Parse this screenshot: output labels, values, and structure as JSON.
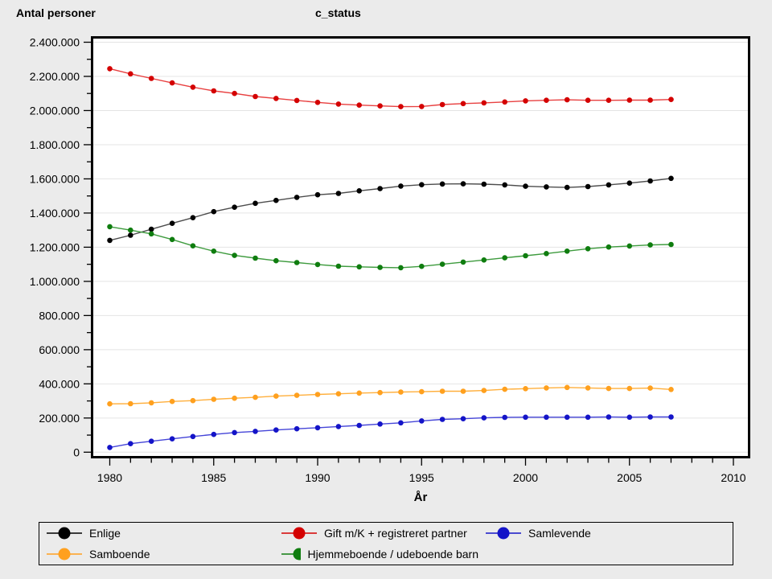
{
  "header": {
    "y_axis_title": "Antal personer",
    "group_title": "c_status"
  },
  "x_axis": {
    "title": "År",
    "range": [
      1980,
      2010
    ],
    "major_tick_step": 5,
    "minor_tick_step": 1,
    "major_tick_labels": [
      "1980",
      "1985",
      "1990",
      "1995",
      "2000",
      "2005",
      "2010"
    ]
  },
  "y_axis": {
    "range": [
      0,
      2400000
    ],
    "major_tick_step": 200000,
    "minor_tick_step": 100000,
    "major_tick_labels": [
      "0",
      "200.000",
      "400.000",
      "600.000",
      "800.000",
      "1.000.000",
      "1.200.000",
      "1.400.000",
      "1.600.000",
      "1.800.000",
      "2.000.000",
      "2.200.000",
      "2.400.000"
    ]
  },
  "chart_data": {
    "type": "line",
    "title": "c_status",
    "xlabel": "År",
    "ylabel": "Antal personer",
    "xlim": [
      1980,
      2010
    ],
    "ylim": [
      0,
      2400000
    ],
    "grid": "horizontal-major",
    "legend_position": "bottom-box",
    "x": [
      1980,
      1981,
      1982,
      1983,
      1984,
      1985,
      1986,
      1987,
      1988,
      1989,
      1990,
      1991,
      1992,
      1993,
      1994,
      1995,
      1996,
      1997,
      1998,
      1999,
      2000,
      2001,
      2002,
      2003,
      2004,
      2005,
      2006,
      2007
    ],
    "series": [
      {
        "name": "Enlige",
        "dot_color": "#000000",
        "line_color": "#4D4D4D",
        "values": [
          1240000,
          1270000,
          1305000,
          1340000,
          1373000,
          1408000,
          1434000,
          1457000,
          1474000,
          1492000,
          1507000,
          1515000,
          1530000,
          1543000,
          1558000,
          1566000,
          1570000,
          1571000,
          1569000,
          1565000,
          1557000,
          1553000,
          1550000,
          1555000,
          1565000,
          1575000,
          1588000,
          1603000
        ]
      },
      {
        "name": "Gift m/K + registreret partner",
        "dot_color": "#D40000",
        "line_color": "#E84040",
        "values": [
          2245000,
          2215000,
          2188000,
          2162000,
          2137000,
          2115000,
          2100000,
          2082000,
          2071000,
          2059000,
          2048000,
          2038000,
          2032000,
          2027000,
          2023000,
          2024000,
          2035000,
          2041000,
          2045000,
          2050000,
          2057000,
          2060000,
          2063000,
          2060000,
          2060000,
          2061000,
          2061000,
          2065000
        ]
      },
      {
        "name": "Samlevende",
        "dot_color": "#1414C8",
        "line_color": "#4545D8",
        "values": [
          28000,
          50000,
          64000,
          78000,
          92000,
          104000,
          115000,
          122000,
          130000,
          137000,
          143000,
          150000,
          157000,
          165000,
          172000,
          183000,
          192000,
          196000,
          201000,
          204000,
          205000,
          205000,
          205000,
          205000,
          206000,
          205000,
          206000,
          206000
        ]
      },
      {
        "name": "Samboende",
        "dot_color": "#FFA01E",
        "line_color": "#FFAF3C",
        "values": [
          283000,
          284000,
          289000,
          297000,
          302000,
          310000,
          316000,
          321000,
          328000,
          333000,
          338000,
          342000,
          346000,
          349000,
          352000,
          354000,
          357000,
          357000,
          361000,
          368000,
          372000,
          376000,
          379000,
          376000,
          373000,
          373000,
          375000,
          367000
        ]
      },
      {
        "name": "Hjemmeboende / udeboende barn",
        "dot_color": "#0F7D0F",
        "line_color": "#3E9B3E",
        "values": [
          1320000,
          1300000,
          1278000,
          1245000,
          1208000,
          1177000,
          1152000,
          1136000,
          1121000,
          1110000,
          1099000,
          1089000,
          1085000,
          1082000,
          1080000,
          1088000,
          1100000,
          1113000,
          1125000,
          1138000,
          1150000,
          1163000,
          1177000,
          1191000,
          1201000,
          1207000,
          1213000,
          1216000
        ]
      }
    ]
  },
  "legend": {
    "items": [
      {
        "label": "Enlige",
        "color": "#000000"
      },
      {
        "label": "Gift m/K + registreret partner",
        "color": "#D40000"
      },
      {
        "label": "Samlevende",
        "color": "#1414C8"
      },
      {
        "label": "Samboende",
        "color": "#FFA01E"
      },
      {
        "label": "Hjemmeboende / udeboende barn",
        "color": "#0F7D0F"
      }
    ]
  },
  "colors": {
    "page_background": "#EBEBEB",
    "plot_background": "#FFFFFF",
    "gridline": "#E4E4E4",
    "frame": "#000000"
  }
}
